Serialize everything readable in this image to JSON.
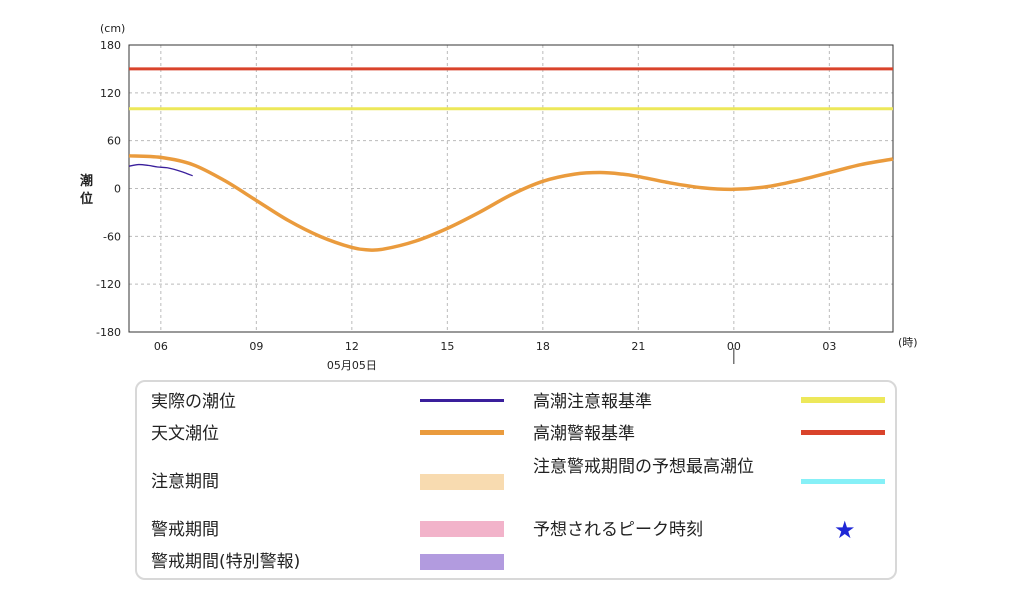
{
  "chart_data": {
    "type": "line",
    "ylabel": "潮位",
    "yunit": "(cm)",
    "xunit": "(時)",
    "ylim": [
      -180,
      180
    ],
    "yticks": [
      180,
      120,
      60,
      0,
      -60,
      -120,
      -180
    ],
    "x_start_hour": 5,
    "x_end_hour": 29,
    "xticks": [
      {
        "hour": 6,
        "label": "06"
      },
      {
        "hour": 9,
        "label": "09"
      },
      {
        "hour": 12,
        "label": "12"
      },
      {
        "hour": 15,
        "label": "15"
      },
      {
        "hour": 18,
        "label": "18"
      },
      {
        "hour": 21,
        "label": "21"
      },
      {
        "hour": 24,
        "label": "00"
      },
      {
        "hour": 27,
        "label": "03"
      }
    ],
    "date_label": "05月05日",
    "date_label_hour": 12,
    "day_boundary_hour": 24,
    "grid": true,
    "series": [
      {
        "name": "高潮警報基準",
        "color": "#d9432b",
        "x": [
          5,
          29
        ],
        "y": [
          150,
          150
        ]
      },
      {
        "name": "高潮注意報基準",
        "color": "#ede85a",
        "x": [
          5,
          29
        ],
        "y": [
          100,
          100
        ]
      },
      {
        "name": "天文潮位",
        "color": "#ea9b3d",
        "x": [
          5,
          6,
          7,
          8,
          9,
          10,
          11,
          12,
          12.5,
          13,
          14,
          15,
          16,
          17,
          18,
          19,
          19.8,
          20.5,
          21,
          22,
          23,
          24,
          25,
          26,
          27,
          28,
          29
        ],
        "y": [
          41,
          39,
          30,
          10,
          -15,
          -40,
          -60,
          -74,
          -77,
          -76,
          -66,
          -50,
          -30,
          -8,
          9,
          18,
          20,
          18,
          15,
          7,
          1,
          -1,
          2,
          10,
          20,
          30,
          37
        ]
      },
      {
        "name": "実際の潮位",
        "color": "#3a1f9c",
        "x": [
          5,
          5.3,
          5.6,
          5.9,
          6.2,
          6.5,
          6.8,
          7.0
        ],
        "y": [
          28,
          30,
          29,
          27,
          26,
          23,
          19,
          16
        ]
      }
    ]
  },
  "legend": {
    "items": [
      {
        "label": "実際の潮位"
      },
      {
        "label": "天文潮位"
      },
      {
        "label": "注意期間"
      },
      {
        "label": "警戒期間"
      },
      {
        "label": "警戒期間(特別警報)"
      },
      {
        "label": "高潮注意報基準"
      },
      {
        "label": "高潮警報基準"
      },
      {
        "label": "注意警戒期間の予想最高潮位"
      },
      {
        "label": "予想されるピーク時刻"
      }
    ],
    "colors": {
      "actual": "#3a1f9c",
      "astronomical": "#ea9b3d",
      "caution_period": "#f8dbb0",
      "warning_period": "#f2b3ca",
      "special_warning_period": "#b29bdf",
      "advisory_level": "#ede85a",
      "warning_level": "#d9432b",
      "max_tide": "#86f0f7",
      "peak_star": "#1f27d6"
    },
    "peak_symbol": "★"
  }
}
